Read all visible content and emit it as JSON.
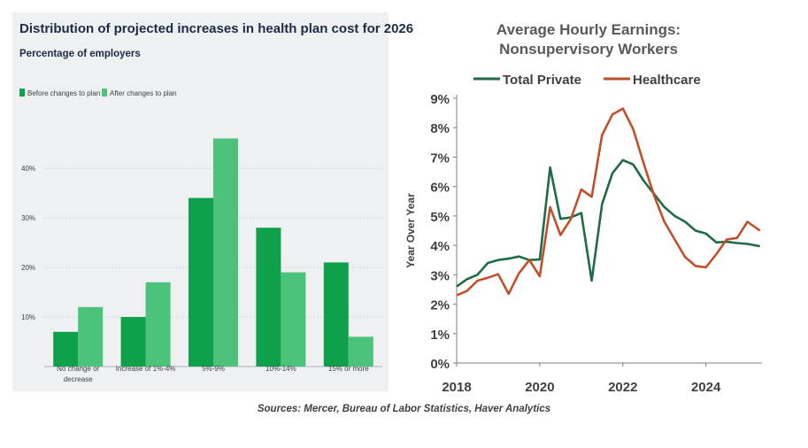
{
  "colors": {
    "before_bar": "#0ea04b",
    "after_bar": "#4cc27a",
    "total_private_line": "#1f6b45",
    "healthcare_line": "#c0502a",
    "left_panel_bg": "#eef0f2"
  },
  "footer": {
    "sources": "Sources: Mercer, Bureau of Labor Statistics, Haver Analytics"
  },
  "chart_data": [
    {
      "type": "bar",
      "title": "Distribution of projected increases in health plan cost for 2026",
      "subtitle": "Percentage of employers",
      "categories": [
        "No change or decrease",
        "Increase of 1%-4%",
        "5%-9%",
        "10%-14%",
        "15% or more"
      ],
      "series": [
        {
          "name": "Before changes to plan",
          "values": [
            7,
            10,
            34,
            28,
            21
          ]
        },
        {
          "name": "After changes to plan",
          "values": [
            12,
            17,
            46,
            19,
            6
          ]
        }
      ],
      "ylim": [
        0,
        50
      ],
      "yticks": [
        10,
        20,
        30,
        40
      ],
      "ytick_labels": [
        "10%",
        "20%",
        "30%",
        "40%"
      ],
      "grid": true,
      "legend": "top-left"
    },
    {
      "type": "line",
      "title_lines": [
        "Average Hourly Earnings:",
        "Nonsupervisory Workers"
      ],
      "ylabel": "Year Over Year",
      "xlim": [
        2018,
        2025.35
      ],
      "ylim": [
        0,
        9
      ],
      "xticks": [
        2018,
        2020,
        2022,
        2024
      ],
      "yticks": [
        0,
        1,
        2,
        3,
        4,
        5,
        6,
        7,
        8,
        9
      ],
      "ytick_labels": [
        "0%",
        "1%",
        "2%",
        "3%",
        "4%",
        "5%",
        "6%",
        "7%",
        "8%",
        "9%"
      ],
      "legend": "top",
      "grid": false,
      "series": [
        {
          "name": "Total Private",
          "x": [
            2018,
            2018.25,
            2018.5,
            2018.75,
            2019,
            2019.25,
            2019.5,
            2019.75,
            2020,
            2020.25,
            2020.5,
            2020.75,
            2021,
            2021.25,
            2021.5,
            2021.75,
            2022,
            2022.25,
            2022.5,
            2022.75,
            2023,
            2023.25,
            2023.5,
            2023.75,
            2024,
            2024.25,
            2024.5,
            2024.75,
            2025,
            2025.3
          ],
          "y": [
            2.6,
            2.85,
            3.0,
            3.4,
            3.5,
            3.55,
            3.62,
            3.5,
            3.52,
            6.65,
            4.9,
            4.95,
            5.1,
            2.8,
            5.4,
            6.45,
            6.9,
            6.75,
            6.2,
            5.75,
            5.3,
            5.0,
            4.8,
            4.5,
            4.4,
            4.1,
            4.12,
            4.08,
            4.05,
            3.97
          ]
        },
        {
          "name": "Healthcare",
          "x": [
            2018,
            2018.25,
            2018.5,
            2018.75,
            2019,
            2019.25,
            2019.5,
            2019.75,
            2020,
            2020.25,
            2020.5,
            2020.75,
            2021,
            2021.25,
            2021.5,
            2021.75,
            2022,
            2022.25,
            2022.5,
            2022.75,
            2023,
            2023.25,
            2023.5,
            2023.75,
            2024,
            2024.25,
            2024.5,
            2024.75,
            2025,
            2025.3
          ],
          "y": [
            2.3,
            2.45,
            2.8,
            2.9,
            3.02,
            2.35,
            3.05,
            3.5,
            2.95,
            5.3,
            4.35,
            4.9,
            5.9,
            5.65,
            7.75,
            8.45,
            8.65,
            7.95,
            6.8,
            5.7,
            4.8,
            4.2,
            3.6,
            3.3,
            3.25,
            3.7,
            4.2,
            4.25,
            4.8,
            4.5
          ]
        }
      ]
    }
  ]
}
